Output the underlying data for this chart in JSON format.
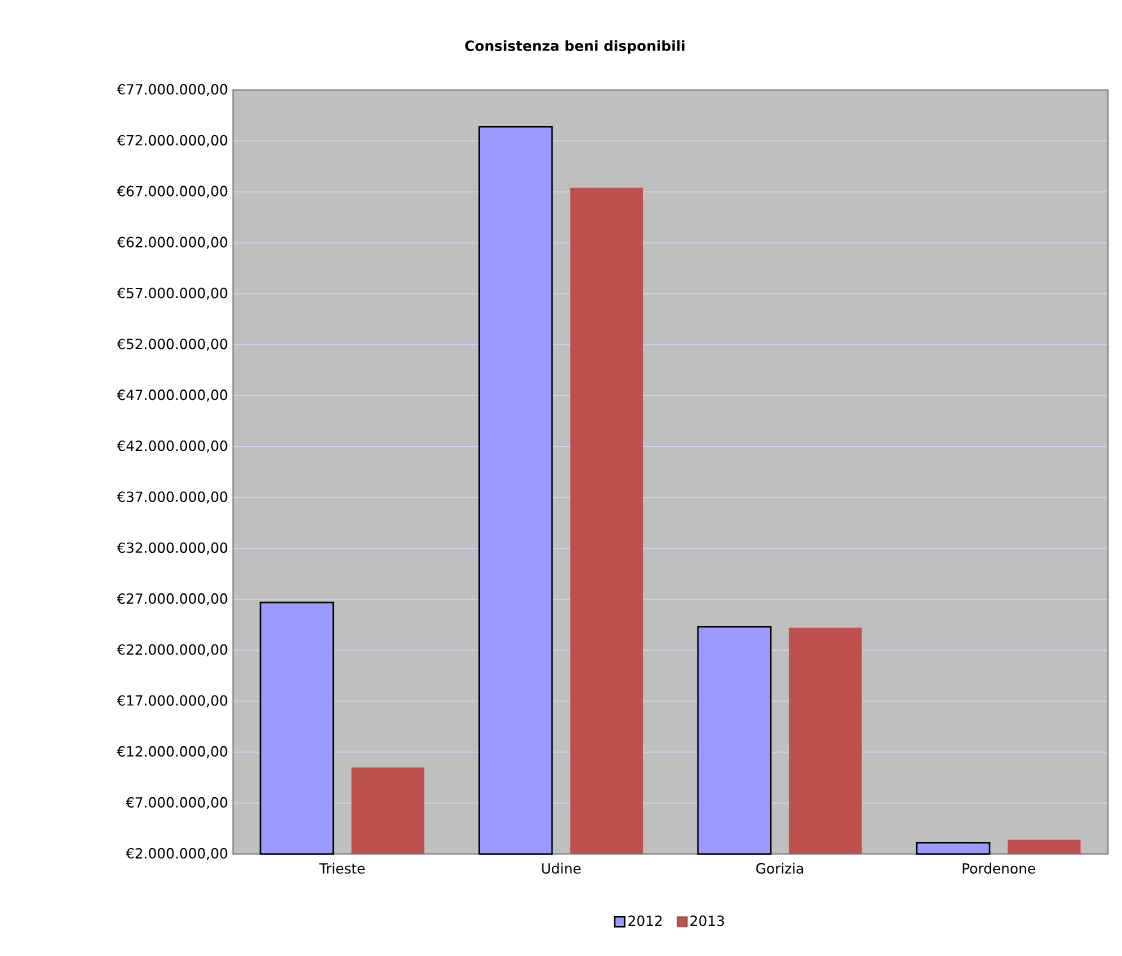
{
  "chart_data": {
    "type": "bar",
    "title": "Consistenza beni disponibili",
    "categories": [
      "Trieste",
      "Udine",
      "Gorizia",
      "Pordenone"
    ],
    "series": [
      {
        "name": "2012",
        "color": "#9999ff",
        "values": [
          26700000,
          73400000,
          24300000,
          3100000
        ]
      },
      {
        "name": "2013",
        "color": "#c0504d",
        "values": [
          10500000,
          67400000,
          24200000,
          3400000
        ]
      }
    ],
    "ylim": [
      2000000,
      77000000
    ],
    "yticks": [
      {
        "value": 2000000,
        "label": "€2.000.000,00"
      },
      {
        "value": 7000000,
        "label": "€7.000.000,00"
      },
      {
        "value": 12000000,
        "label": "€12.000.000,00"
      },
      {
        "value": 17000000,
        "label": "€17.000.000,00"
      },
      {
        "value": 22000000,
        "label": "€22.000.000,00"
      },
      {
        "value": 27000000,
        "label": "€27.000.000,00"
      },
      {
        "value": 32000000,
        "label": "€32.000.000,00"
      },
      {
        "value": 37000000,
        "label": "€37.000.000,00"
      },
      {
        "value": 42000000,
        "label": "€42.000.000,00"
      },
      {
        "value": 47000000,
        "label": "€47.000.000,00"
      },
      {
        "value": 52000000,
        "label": "€52.000.000,00"
      },
      {
        "value": 57000000,
        "label": "€57.000.000,00"
      },
      {
        "value": 62000000,
        "label": "€62.000.000,00"
      },
      {
        "value": 67000000,
        "label": "€67.000.000,00"
      },
      {
        "value": 72000000,
        "label": "€72.000.000,00"
      },
      {
        "value": 77000000,
        "label": "€77.000.000,00"
      }
    ],
    "grid": "y",
    "legend": "bottom"
  }
}
